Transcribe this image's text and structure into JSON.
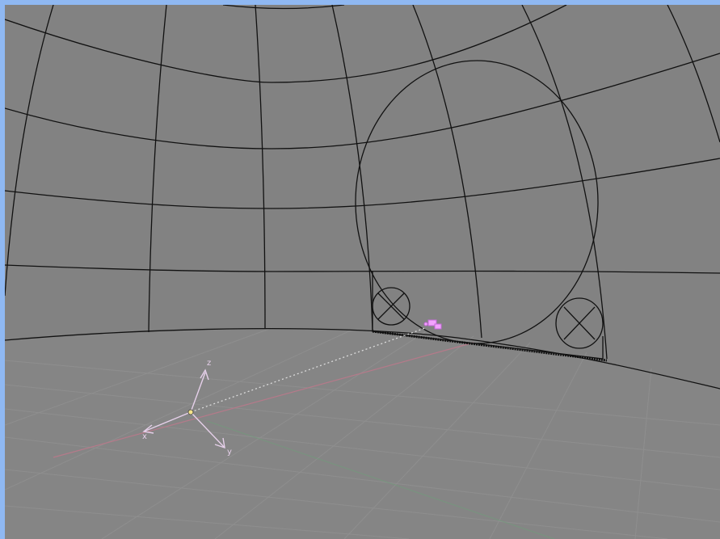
{
  "app": {
    "window_title": ""
  },
  "viewport": {
    "mode": "3d-view",
    "shading": "wireframe",
    "background_color": "#828282",
    "frame_color": "#8fb8f2",
    "wire_color": "#111111",
    "grid_color": "#9a9a9a",
    "axis_x_color": "#b57a8a",
    "axis_y_color": "#6ea07a",
    "selection_color": "#f3a3ff"
  },
  "scene": {
    "dome_mesh": "wireframe-dome",
    "floor_grid": "ground-grid",
    "large_sphere": "circle-wire",
    "small_sphere_left": "circle-wire-x",
    "small_sphere_right": "circle-wire-x",
    "camera_empty": "axis-gizmo",
    "selected_object": "pink-marker"
  },
  "gizmo": {
    "x_label": "x",
    "y_label": "y",
    "z_label": "z"
  }
}
